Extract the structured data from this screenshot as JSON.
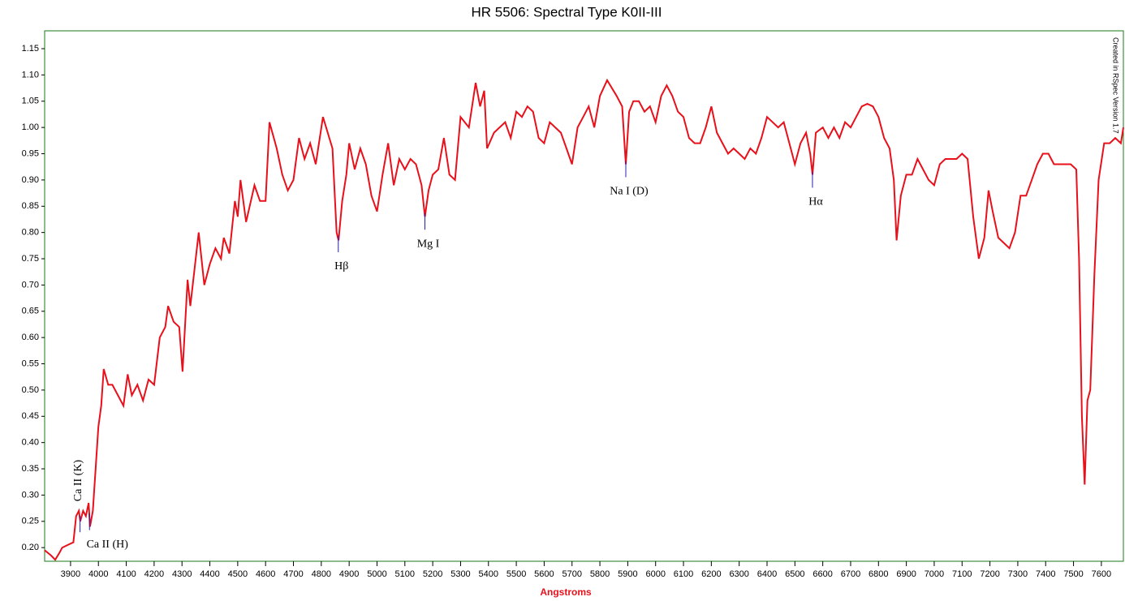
{
  "chart_data": {
    "type": "line",
    "title": "HR 5506: Spectral Type K0II-III",
    "x_label": "Angstroms",
    "credit": "Created in RSpec Version 1.7",
    "xlim": [
      3807,
      7679
    ],
    "ylim": [
      0.174,
      1.184
    ],
    "xticks": [
      3900,
      4000,
      4100,
      4200,
      4300,
      4400,
      4500,
      4600,
      4700,
      4800,
      4900,
      5000,
      5100,
      5200,
      5300,
      5400,
      5500,
      5600,
      5700,
      5800,
      5900,
      6000,
      6100,
      6200,
      6300,
      6400,
      6500,
      6600,
      6700,
      6800,
      6900,
      7000,
      7100,
      7200,
      7300,
      7400,
      7500,
      7600
    ],
    "yticks": [
      {
        "value": 0.2,
        "label": "0.20"
      },
      0.25,
      {
        "value": 0.3,
        "label": "0.30"
      },
      0.35,
      {
        "value": 0.4,
        "label": "0.40"
      },
      0.45,
      {
        "value": 0.5,
        "label": "0.50"
      },
      0.55,
      {
        "value": 0.6,
        "label": "0.60"
      },
      0.65,
      {
        "value": 0.7,
        "label": "0.70"
      },
      0.75,
      {
        "value": 0.8,
        "label": "0.80"
      },
      0.85,
      {
        "value": 0.9,
        "label": "0.90"
      },
      0.95,
      {
        "value": 1.0,
        "label": "1.00"
      },
      1.05,
      {
        "value": 1.1,
        "label": "1.10"
      },
      1.15
    ],
    "x": [
      3807,
      3830,
      3845,
      3860,
      3870,
      3890,
      3910,
      3920,
      3930,
      3935,
      3945,
      3955,
      3965,
      3970,
      3980,
      3990,
      4000,
      4010,
      4019,
      4035,
      4050,
      4070,
      4090,
      4105,
      4120,
      4140,
      4160,
      4180,
      4200,
      4220,
      4240,
      4250,
      4270,
      4290,
      4302,
      4320,
      4330,
      4360,
      4380,
      4400,
      4420,
      4440,
      4450,
      4470,
      4490,
      4500,
      4510,
      4530,
      4560,
      4580,
      4600,
      4614,
      4640,
      4660,
      4680,
      4700,
      4720,
      4740,
      4760,
      4780,
      4806,
      4840,
      4855,
      4862,
      4875,
      4890,
      4900,
      4920,
      4940,
      4960,
      4980,
      5000,
      5020,
      5040,
      5060,
      5080,
      5100,
      5120,
      5140,
      5160,
      5172,
      5185,
      5200,
      5220,
      5240,
      5260,
      5280,
      5300,
      5330,
      5354,
      5370,
      5385,
      5395,
      5420,
      5440,
      5460,
      5480,
      5500,
      5520,
      5540,
      5560,
      5580,
      5600,
      5620,
      5640,
      5660,
      5680,
      5700,
      5720,
      5740,
      5760,
      5780,
      5800,
      5826,
      5860,
      5880,
      5893,
      5905,
      5920,
      5940,
      5960,
      5980,
      6000,
      6020,
      6040,
      6060,
      6080,
      6100,
      6120,
      6140,
      6160,
      6180,
      6200,
      6220,
      6240,
      6260,
      6280,
      6300,
      6320,
      6340,
      6360,
      6380,
      6400,
      6420,
      6440,
      6460,
      6480,
      6500,
      6520,
      6540,
      6555,
      6563,
      6575,
      6600,
      6620,
      6640,
      6660,
      6680,
      6700,
      6720,
      6740,
      6760,
      6780,
      6800,
      6820,
      6840,
      6855,
      6865,
      6880,
      6900,
      6920,
      6940,
      6960,
      6980,
      7000,
      7020,
      7040,
      7060,
      7080,
      7100,
      7120,
      7140,
      7160,
      7180,
      7195,
      7210,
      7230,
      7250,
      7270,
      7290,
      7310,
      7330,
      7350,
      7370,
      7390,
      7410,
      7430,
      7450,
      7470,
      7490,
      7510,
      7520,
      7530,
      7540,
      7550,
      7560,
      7575,
      7590,
      7610,
      7630,
      7650,
      7670,
      7679
    ],
    "series": [
      {
        "name": "HR 5506",
        "color": "#e8101a",
        "values": [
          0.195,
          0.185,
          0.177,
          0.19,
          0.2,
          0.205,
          0.21,
          0.26,
          0.27,
          0.25,
          0.27,
          0.26,
          0.285,
          0.24,
          0.27,
          0.35,
          0.43,
          0.47,
          0.54,
          0.51,
          0.51,
          0.49,
          0.47,
          0.53,
          0.49,
          0.51,
          0.48,
          0.52,
          0.51,
          0.6,
          0.62,
          0.66,
          0.63,
          0.62,
          0.535,
          0.71,
          0.66,
          0.8,
          0.7,
          0.74,
          0.77,
          0.75,
          0.79,
          0.76,
          0.86,
          0.83,
          0.9,
          0.82,
          0.89,
          0.86,
          0.86,
          1.01,
          0.96,
          0.91,
          0.88,
          0.9,
          0.98,
          0.94,
          0.97,
          0.93,
          1.02,
          0.96,
          0.8,
          0.785,
          0.86,
          0.91,
          0.97,
          0.92,
          0.96,
          0.93,
          0.87,
          0.84,
          0.91,
          0.97,
          0.89,
          0.94,
          0.92,
          0.94,
          0.93,
          0.89,
          0.83,
          0.88,
          0.91,
          0.92,
          0.98,
          0.91,
          0.9,
          1.02,
          1.0,
          1.085,
          1.04,
          1.07,
          0.96,
          0.99,
          1.0,
          1.01,
          0.98,
          1.03,
          1.02,
          1.04,
          1.03,
          0.98,
          0.97,
          1.01,
          1.0,
          0.99,
          0.96,
          0.93,
          1.0,
          1.02,
          1.04,
          1.0,
          1.06,
          1.09,
          1.06,
          1.04,
          0.93,
          1.03,
          1.05,
          1.05,
          1.03,
          1.04,
          1.01,
          1.06,
          1.08,
          1.06,
          1.03,
          1.02,
          0.98,
          0.97,
          0.97,
          1.0,
          1.04,
          0.99,
          0.97,
          0.95,
          0.96,
          0.95,
          0.94,
          0.96,
          0.95,
          0.98,
          1.02,
          1.01,
          1.0,
          1.01,
          0.97,
          0.93,
          0.97,
          0.99,
          0.95,
          0.91,
          0.99,
          1.0,
          0.98,
          1.0,
          0.98,
          1.01,
          1.0,
          1.02,
          1.04,
          1.045,
          1.04,
          1.02,
          0.98,
          0.96,
          0.9,
          0.785,
          0.87,
          0.91,
          0.91,
          0.94,
          0.92,
          0.9,
          0.89,
          0.93,
          0.94,
          0.94,
          0.94,
          0.95,
          0.94,
          0.83,
          0.75,
          0.79,
          0.88,
          0.84,
          0.79,
          0.78,
          0.77,
          0.8,
          0.87,
          0.87,
          0.9,
          0.93,
          0.95,
          0.95,
          0.93,
          0.93,
          0.93,
          0.93,
          0.92,
          0.75,
          0.45,
          0.32,
          0.48,
          0.5,
          0.72,
          0.9,
          0.97,
          0.97,
          0.98,
          0.97,
          1.0
        ]
      }
    ],
    "annotations": [
      {
        "text": "Ca II (K)",
        "x": 3934
      },
      {
        "text": "Ca II (H)",
        "x": 3968
      },
      {
        "text": "Hβ",
        "x": 4861
      },
      {
        "text": "Mg I",
        "x": 5172
      },
      {
        "text": "Na I (D)",
        "x": 5893
      },
      {
        "text": "Hα",
        "x": 6563
      }
    ],
    "annotation_color": "#2020b0"
  }
}
